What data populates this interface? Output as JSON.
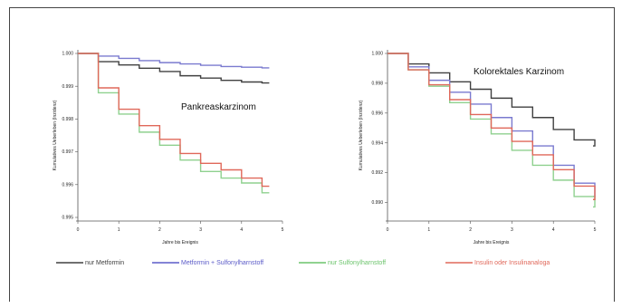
{
  "chart_data": [
    {
      "type": "line",
      "title": "Pankreaskarzinom",
      "xlabel": "Jahre bis Ereignis",
      "ylabel": "Kumulatives Ueberleben (Inzidenz)",
      "xlim": [
        0,
        5
      ],
      "ylim": [
        0.995,
        1.0
      ],
      "xticks": [
        "0",
        "1",
        "2",
        "3",
        "4",
        "5"
      ],
      "yticks": [
        "0.995",
        "0.996",
        "0.997",
        "0.998",
        "0.999",
        "1.000"
      ],
      "x": [
        0,
        0.5,
        1,
        1.5,
        2,
        2.5,
        3,
        3.5,
        4,
        4.5
      ],
      "series": [
        {
          "name": "nur Metformin",
          "color": "#404040",
          "values": [
            1.0,
            0.99975,
            0.99965,
            0.99955,
            0.99945,
            0.99932,
            0.99925,
            0.99918,
            0.99913,
            0.9991
          ]
        },
        {
          "name": "Metformin + Sulfonylharnstoff",
          "color": "#7a7acf",
          "values": [
            1.0,
            0.99992,
            0.99985,
            0.99978,
            0.99972,
            0.99968,
            0.99964,
            0.9996,
            0.99958,
            0.99956
          ]
        },
        {
          "name": "nur Sulfonylharnstoff",
          "color": "#8fd18f",
          "values": [
            1.0,
            0.9988,
            0.99815,
            0.9976,
            0.9972,
            0.99675,
            0.9964,
            0.9962,
            0.99605,
            0.99575
          ]
        },
        {
          "name": "Insulin oder Insulinanaloga",
          "color": "#e0685a",
          "values": [
            1.0,
            0.99895,
            0.9983,
            0.9978,
            0.99738,
            0.99695,
            0.99665,
            0.99645,
            0.9962,
            0.99595
          ]
        }
      ]
    },
    {
      "type": "line",
      "title": "Kolorektales Karzinom",
      "xlabel": "Jahre bis Ereignis",
      "ylabel": "Kumulatives Ueberleben (Inzidenz)",
      "xlim": [
        0,
        5
      ],
      "ylim": [
        0.989,
        1.0
      ],
      "xticks": [
        "0",
        "1",
        "2",
        "3",
        "4",
        "5"
      ],
      "yticks": [
        "0.990",
        "0.992",
        "0.994",
        "0.996",
        "0.998",
        "1.000"
      ],
      "x": [
        0,
        0.5,
        1,
        1.5,
        2,
        2.5,
        3,
        3.5,
        4,
        4.5,
        5
      ],
      "series": [
        {
          "name": "nur Metformin",
          "color": "#404040",
          "values": [
            1.0,
            0.9993,
            0.9987,
            0.9981,
            0.9976,
            0.997,
            0.9964,
            0.9957,
            0.9949,
            0.9942,
            0.9938
          ]
        },
        {
          "name": "Metformin + Sulfonylharnstoff",
          "color": "#7a7acf",
          "values": [
            1.0,
            0.9991,
            0.9982,
            0.9974,
            0.9966,
            0.9957,
            0.9948,
            0.9938,
            0.9925,
            0.9913,
            0.9904
          ]
        },
        {
          "name": "nur Sulfonylharnstoff",
          "color": "#8fd18f",
          "values": [
            1.0,
            0.9989,
            0.9978,
            0.9967,
            0.9956,
            0.9946,
            0.9935,
            0.9925,
            0.9915,
            0.9904,
            0.9897
          ]
        },
        {
          "name": "Insulin oder Insulinanaloga",
          "color": "#e0685a",
          "values": [
            1.0,
            0.9989,
            0.9979,
            0.9969,
            0.9959,
            0.995,
            0.9941,
            0.9932,
            0.9922,
            0.9911,
            0.9902
          ]
        }
      ]
    }
  ],
  "legend": [
    {
      "label": "nur Metformin",
      "color": "#404040"
    },
    {
      "label": "Metformin + Sulfonylharnstoff",
      "color": "#5b5bc8"
    },
    {
      "label": "nur Sulfonylharnstoff",
      "color": "#6cc46c"
    },
    {
      "label": "Insulin oder Insulinanaloga",
      "color": "#e0685a"
    }
  ]
}
